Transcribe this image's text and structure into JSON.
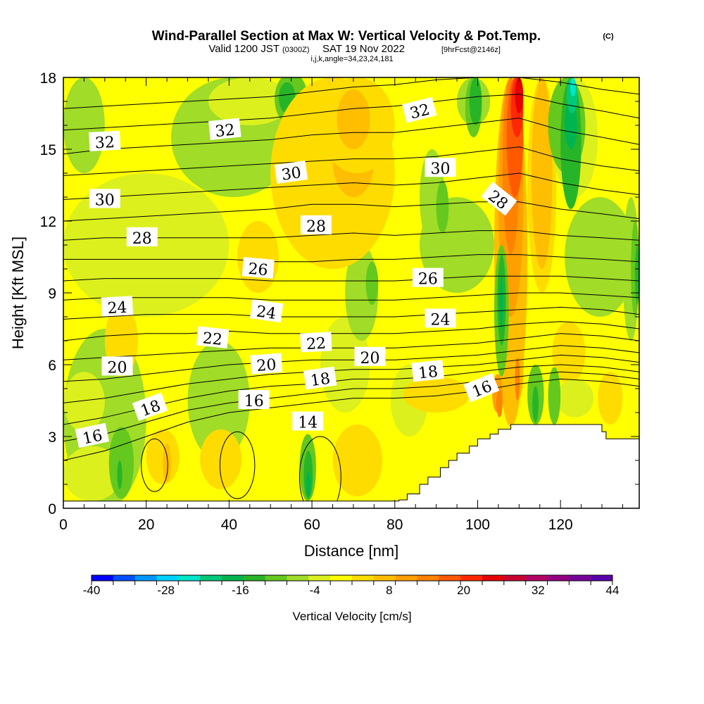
{
  "header": {
    "title": "Wind-Parallel Section at Max W: Vertical Velocity & Pot.Temp.",
    "copyright": "(C)",
    "valid_prefix": "Valid 1200 JST",
    "valid_zulu": "(0300Z)",
    "valid_date": "SAT 19 Nov 2022",
    "forecast": "[9hrFcst@2146z]",
    "indices": "i,j,k,angle=34,23,24,181"
  },
  "chart_data": {
    "type": "heatmap",
    "xlabel": "Distance [nm]",
    "ylabel": "Height [Kft MSL]",
    "xlim": [
      0,
      139
    ],
    "ylim": [
      0,
      18
    ],
    "x_ticks": [
      0,
      20,
      40,
      60,
      80,
      100,
      120
    ],
    "y_ticks": [
      0,
      3,
      6,
      9,
      12,
      15,
      18
    ],
    "colorbar": {
      "label": "Vertical Velocity [cm/s]",
      "range": [
        -40,
        44
      ],
      "tick_values": [
        -40,
        -28,
        -16,
        -4,
        8,
        20,
        32,
        44
      ],
      "colors": [
        "#0000ff",
        "#0050ff",
        "#0096ff",
        "#00d2ff",
        "#00e6c8",
        "#00c878",
        "#00b450",
        "#28b428",
        "#64c81e",
        "#a0dc28",
        "#dcf01e",
        "#ffff00",
        "#ffdc00",
        "#ffbe00",
        "#ffa000",
        "#ff8200",
        "#ff5a00",
        "#ff2800",
        "#e60000",
        "#c80032",
        "#b40064",
        "#960082",
        "#78009b",
        "#5a00aa"
      ]
    },
    "contour_labels": [
      {
        "label": "32",
        "x": 10,
        "y": 15.3,
        "angle": -3
      },
      {
        "label": "32",
        "x": 39,
        "y": 15.8,
        "angle": -6
      },
      {
        "label": "32",
        "x": 86,
        "y": 16.6,
        "angle": -14
      },
      {
        "label": "30",
        "x": 55,
        "y": 14.0,
        "angle": -8
      },
      {
        "label": "30",
        "x": 91,
        "y": 14.2,
        "angle": 0
      },
      {
        "label": "30",
        "x": 10,
        "y": 12.9,
        "angle": 0
      },
      {
        "label": "28",
        "x": 105,
        "y": 12.9,
        "angle": 38
      },
      {
        "label": "28",
        "x": 19,
        "y": 11.3,
        "angle": 0
      },
      {
        "label": "28",
        "x": 61,
        "y": 11.8,
        "angle": 0
      },
      {
        "label": "26",
        "x": 47,
        "y": 10.0,
        "angle": 5
      },
      {
        "label": "26",
        "x": 88,
        "y": 9.6,
        "angle": 0
      },
      {
        "label": "24",
        "x": 13,
        "y": 8.4,
        "angle": -3
      },
      {
        "label": "24",
        "x": 49,
        "y": 8.2,
        "angle": 8
      },
      {
        "label": "24",
        "x": 91,
        "y": 7.9,
        "angle": 0
      },
      {
        "label": "22",
        "x": 36,
        "y": 7.1,
        "angle": 6
      },
      {
        "label": "22",
        "x": 61,
        "y": 6.9,
        "angle": -3
      },
      {
        "label": "20",
        "x": 13,
        "y": 5.9,
        "angle": 0
      },
      {
        "label": "20",
        "x": 49,
        "y": 6.0,
        "angle": -4
      },
      {
        "label": "20",
        "x": 74,
        "y": 6.3,
        "angle": 0
      },
      {
        "label": "18",
        "x": 21,
        "y": 4.2,
        "angle": -20
      },
      {
        "label": "18",
        "x": 62,
        "y": 5.4,
        "angle": -8
      },
      {
        "label": "18",
        "x": 88,
        "y": 5.7,
        "angle": -6
      },
      {
        "label": "16",
        "x": 7,
        "y": 3.0,
        "angle": -12
      },
      {
        "label": "16",
        "x": 46,
        "y": 4.5,
        "angle": 0
      },
      {
        "label": "16",
        "x": 101,
        "y": 5.0,
        "angle": -22
      },
      {
        "label": "14",
        "x": 59,
        "y": 3.6,
        "angle": 0
      }
    ],
    "theta_lines": [
      {
        "x": [
          0,
          10,
          20,
          30,
          40,
          50,
          60,
          70,
          80,
          90,
          100,
          110,
          120,
          130,
          139
        ],
        "y": [
          2.0,
          2.4,
          3.0,
          3.6,
          4.0,
          4.2,
          4.4,
          4.6,
          4.6,
          4.7,
          4.9,
          5.2,
          5.4,
          5.3,
          5.1
        ]
      },
      {
        "x": [
          0,
          10,
          20,
          30,
          40,
          50,
          60,
          70,
          80,
          90,
          100,
          110,
          120,
          130,
          139
        ],
        "y": [
          2.8,
          3.1,
          3.6,
          4.1,
          4.4,
          4.6,
          4.8,
          5.0,
          5.0,
          5.1,
          5.3,
          5.5,
          5.7,
          5.6,
          5.4
        ]
      },
      {
        "x": [
          0,
          10,
          20,
          30,
          40,
          50,
          60,
          70,
          80,
          90,
          100,
          110,
          120,
          130,
          139
        ],
        "y": [
          3.5,
          3.8,
          4.2,
          4.6,
          4.9,
          5.1,
          5.2,
          5.4,
          5.4,
          5.5,
          5.7,
          5.9,
          6.0,
          5.9,
          5.7
        ]
      },
      {
        "x": [
          0,
          10,
          20,
          30,
          40,
          50,
          60,
          70,
          80,
          90,
          100,
          110,
          120,
          130,
          139
        ],
        "y": [
          4.4,
          4.6,
          4.9,
          5.2,
          5.4,
          5.6,
          5.7,
          5.8,
          5.8,
          5.9,
          6.0,
          6.2,
          6.4,
          6.3,
          6.1
        ]
      },
      {
        "x": [
          0,
          10,
          20,
          30,
          40,
          50,
          60,
          70,
          80,
          90,
          100,
          110,
          120,
          130,
          139
        ],
        "y": [
          5.3,
          5.4,
          5.6,
          5.8,
          6.0,
          6.1,
          6.2,
          6.2,
          6.2,
          6.3,
          6.4,
          6.6,
          6.8,
          6.7,
          6.5
        ]
      },
      {
        "x": [
          0,
          10,
          20,
          30,
          40,
          50,
          60,
          70,
          80,
          90,
          100,
          110,
          120,
          130,
          139
        ],
        "y": [
          6.2,
          6.3,
          6.4,
          6.5,
          6.6,
          6.7,
          6.7,
          6.7,
          6.7,
          6.8,
          6.9,
          7.1,
          7.3,
          7.2,
          7.0
        ]
      },
      {
        "x": [
          0,
          10,
          20,
          30,
          40,
          50,
          60,
          70,
          80,
          90,
          100,
          110,
          120,
          130,
          139
        ],
        "y": [
          7.0,
          7.2,
          7.3,
          7.3,
          7.4,
          7.3,
          7.3,
          7.3,
          7.3,
          7.4,
          7.5,
          7.7,
          7.8,
          7.7,
          7.5
        ]
      },
      {
        "x": [
          0,
          10,
          20,
          30,
          40,
          50,
          60,
          70,
          80,
          90,
          100,
          110,
          120,
          130,
          139
        ],
        "y": [
          7.9,
          8.0,
          8.1,
          8.1,
          8.1,
          8.0,
          8.0,
          8.0,
          8.0,
          8.1,
          8.2,
          8.3,
          8.4,
          8.3,
          8.1
        ]
      },
      {
        "x": [
          0,
          10,
          20,
          30,
          40,
          50,
          60,
          70,
          80,
          90,
          100,
          110,
          120,
          130,
          139
        ],
        "y": [
          8.7,
          8.8,
          8.8,
          8.8,
          8.8,
          8.7,
          8.7,
          8.7,
          8.7,
          8.8,
          8.9,
          9.0,
          9.0,
          8.9,
          8.8
        ]
      },
      {
        "x": [
          0,
          10,
          20,
          30,
          40,
          50,
          60,
          70,
          80,
          90,
          100,
          110,
          120,
          130,
          139
        ],
        "y": [
          9.5,
          9.6,
          9.6,
          9.6,
          9.6,
          9.5,
          9.5,
          9.5,
          9.5,
          9.6,
          9.7,
          9.7,
          9.7,
          9.6,
          9.5
        ]
      },
      {
        "x": [
          0,
          10,
          20,
          30,
          40,
          50,
          60,
          70,
          80,
          90,
          100,
          110,
          120,
          130,
          139
        ],
        "y": [
          10.4,
          10.4,
          10.4,
          10.4,
          10.4,
          10.3,
          10.3,
          10.4,
          10.4,
          10.5,
          10.6,
          10.6,
          10.5,
          10.4,
          10.3
        ]
      },
      {
        "x": [
          0,
          10,
          20,
          30,
          40,
          50,
          60,
          70,
          80,
          90,
          100,
          110,
          120,
          130,
          139
        ],
        "y": [
          11.2,
          11.3,
          11.3,
          11.3,
          11.3,
          11.3,
          11.4,
          11.5,
          11.4,
          11.5,
          11.6,
          11.6,
          11.4,
          11.3,
          11.2
        ]
      },
      {
        "x": [
          0,
          10,
          20,
          30,
          40,
          50,
          60,
          70,
          80,
          90,
          100,
          110,
          120,
          130,
          139
        ],
        "y": [
          12.0,
          12.1,
          12.2,
          12.3,
          12.4,
          12.5,
          12.7,
          12.7,
          12.6,
          12.7,
          12.8,
          12.8,
          12.5,
          12.3,
          12.1
        ]
      },
      {
        "x": [
          0,
          10,
          20,
          30,
          40,
          50,
          60,
          70,
          80,
          90,
          100,
          110,
          120,
          130,
          139
        ],
        "y": [
          12.9,
          13.0,
          13.1,
          13.2,
          13.3,
          13.4,
          13.5,
          13.6,
          13.5,
          13.6,
          13.8,
          14.0,
          13.6,
          13.3,
          13.1
        ]
      },
      {
        "x": [
          0,
          10,
          20,
          30,
          40,
          50,
          60,
          70,
          80,
          90,
          100,
          110,
          120,
          130,
          139
        ],
        "y": [
          13.9,
          14.0,
          14.1,
          14.2,
          14.3,
          14.4,
          14.5,
          14.6,
          14.6,
          14.7,
          14.9,
          15.1,
          14.6,
          14.3,
          14.1
        ]
      },
      {
        "x": [
          0,
          10,
          20,
          30,
          40,
          50,
          60,
          70,
          80,
          90,
          100,
          110,
          120,
          130,
          139
        ],
        "y": [
          14.8,
          15.0,
          15.1,
          15.2,
          15.3,
          15.4,
          15.6,
          15.7,
          15.7,
          15.9,
          16.1,
          16.3,
          15.8,
          15.5,
          15.2
        ]
      },
      {
        "x": [
          0,
          10,
          20,
          30,
          40,
          50,
          60,
          70,
          80,
          90,
          100,
          110,
          120,
          130,
          139
        ],
        "y": [
          15.8,
          15.9,
          16.0,
          16.1,
          16.2,
          16.3,
          16.5,
          16.7,
          16.8,
          17.0,
          17.2,
          17.3,
          16.9,
          16.6,
          16.3
        ]
      },
      {
        "x": [
          0,
          10,
          20,
          30,
          40,
          50,
          60,
          70,
          80,
          90,
          100,
          110,
          120,
          130,
          139
        ],
        "y": [
          16.7,
          16.8,
          16.9,
          17.0,
          17.1,
          17.2,
          17.4,
          17.6,
          17.7,
          17.9,
          18.0,
          18.0,
          17.8,
          17.5,
          17.3
        ]
      }
    ],
    "terrain": {
      "x": [
        0,
        81,
        81,
        83,
        83,
        86,
        86,
        88,
        88,
        91,
        91,
        93,
        93,
        95,
        95,
        98,
        98,
        100,
        100,
        103,
        103,
        105,
        105,
        108,
        108,
        113,
        113,
        130,
        130,
        131,
        131,
        139
      ],
      "y": [
        0.3,
        0.3,
        0.35,
        0.35,
        0.6,
        0.6,
        1.0,
        1.0,
        1.3,
        1.3,
        1.7,
        1.7,
        2.0,
        2.0,
        2.3,
        2.3,
        2.6,
        2.6,
        2.9,
        2.9,
        3.1,
        3.1,
        3.3,
        3.3,
        3.5,
        3.5,
        3.5,
        3.5,
        3.2,
        3.2,
        2.9,
        2.9
      ]
    }
  }
}
